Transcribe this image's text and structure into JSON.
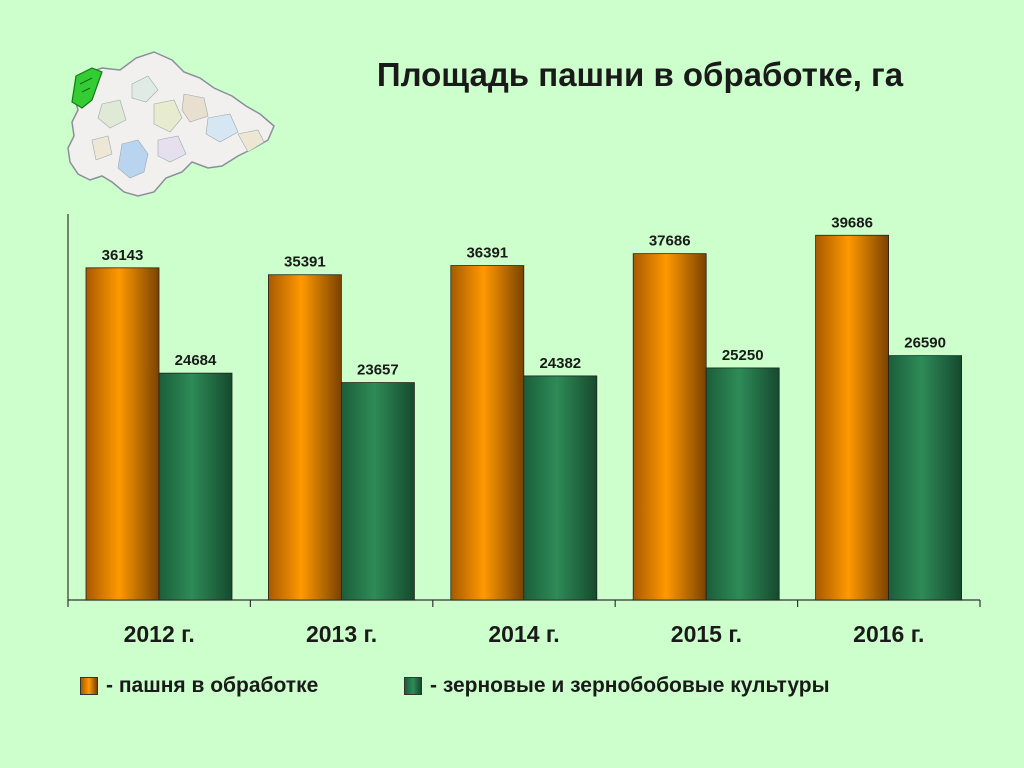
{
  "page": {
    "title": "Площадь пашни в обработке, га"
  },
  "chart_data": {
    "type": "bar",
    "title": "Площадь пашни в обработке, га",
    "categories": [
      "2012 г.",
      "2013 г.",
      "2014 г.",
      "2015 г.",
      "2016 г."
    ],
    "series": [
      {
        "name": "- пашня в обработке",
        "color": "#ff9900",
        "values": [
          36143,
          35391,
          36391,
          37686,
          39686
        ]
      },
      {
        "name": "- зерновые и зернобобовые культуры",
        "color": "#2e8b57",
        "values": [
          24684,
          23657,
          24382,
          25250,
          26590
        ]
      }
    ],
    "ylim": [
      0,
      42000
    ],
    "grid": false,
    "legend_position": "bottom",
    "data_labels": true
  }
}
